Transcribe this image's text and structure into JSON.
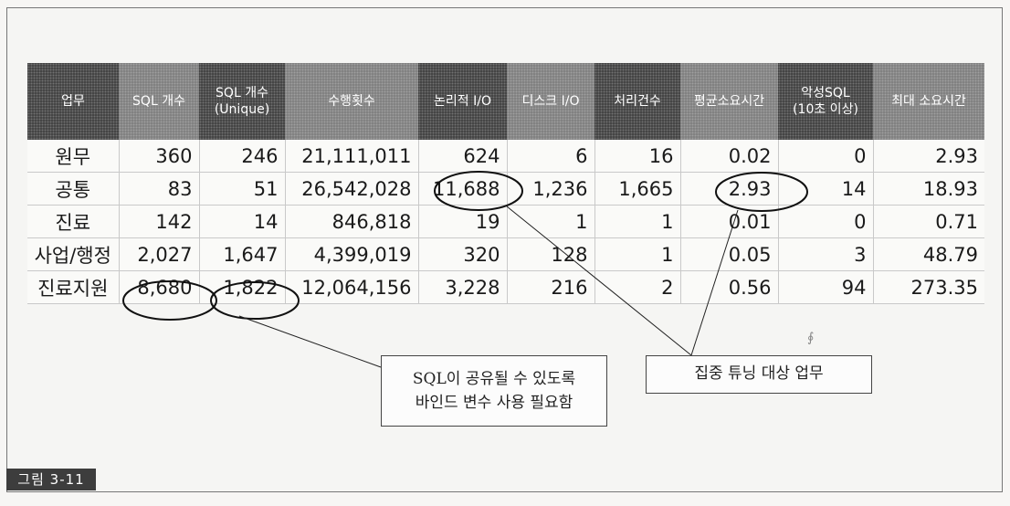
{
  "table": {
    "headers": [
      "업무",
      "SQL 개수",
      "SQL 개수\n(Unique)",
      "수행횟수",
      "논리적 I/O",
      "디스크 I/O",
      "처리건수",
      "평균소요시간",
      "악성SQL\n(10초 이상)",
      "최대 소요시간"
    ],
    "rows": [
      [
        "원무",
        "360",
        "246",
        "21,111,011",
        "624",
        "6",
        "16",
        "0.02",
        "0",
        "2.93"
      ],
      [
        "공통",
        "83",
        "51",
        "26,542,028",
        "11,688",
        "1,236",
        "1,665",
        "2.93",
        "14",
        "18.93"
      ],
      [
        "진료",
        "142",
        "14",
        "846,818",
        "19",
        "1",
        "1",
        "0.01",
        "0",
        "0.71"
      ],
      [
        "사업/행정",
        "2,027",
        "1,647",
        "4,399,019",
        "320",
        "128",
        "1",
        "0.05",
        "3",
        "48.79"
      ],
      [
        "진료지원",
        "8,680",
        "1,822",
        "12,064,156",
        "3,228",
        "216",
        "2",
        "0.56",
        "94",
        "273.35"
      ]
    ]
  },
  "annotations": {
    "note1_line1": "SQL이 공유될 수 있도록",
    "note1_line2": "바인드 변수 사용 필요함",
    "note2": "집중 튜닝 대상 업무"
  },
  "figure_label": "그림 3-11",
  "mark_glyph": "∮",
  "colors": {
    "header_dark": "#3a3a3a",
    "header_mid": "#6b6b6b",
    "label_bg": "#3d3d3d"
  }
}
